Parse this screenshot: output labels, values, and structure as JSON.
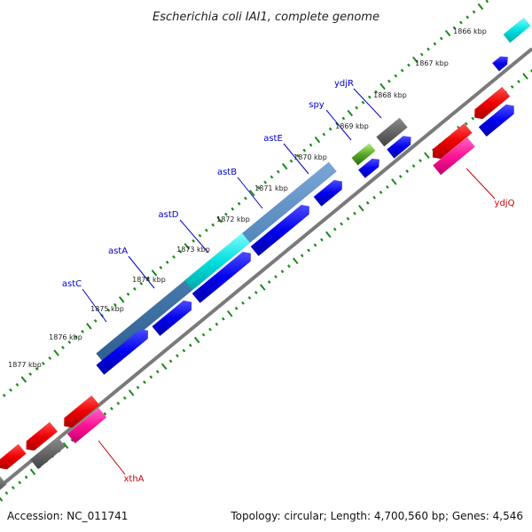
{
  "title": "Escherichia coli IAI1, complete genome",
  "footer": {
    "accession": "Accession: NC_011741",
    "summary": "Topology: circular; Length: 4,700,560 bp; Genes: 4,546"
  },
  "ticks": [
    {
      "label": "1866 kbp"
    },
    {
      "label": "1867 kbp"
    },
    {
      "label": "1868 kbp"
    },
    {
      "label": "1869 kbp"
    },
    {
      "label": "1870 kbp"
    },
    {
      "label": "1871 kbp"
    },
    {
      "label": "1872 kbp"
    },
    {
      "label": "1873 kbp"
    },
    {
      "label": "1874 kbp"
    },
    {
      "label": "1875 kbp"
    },
    {
      "label": "1876 kbp"
    },
    {
      "label": "1877 kbp"
    }
  ],
  "gene_labels": [
    {
      "text": "ydjR",
      "color": "#0000cc"
    },
    {
      "text": "spy",
      "color": "#0000cc"
    },
    {
      "text": "astE",
      "color": "#0000cc"
    },
    {
      "text": "astB",
      "color": "#0000cc"
    },
    {
      "text": "astD",
      "color": "#0000cc"
    },
    {
      "text": "astA",
      "color": "#0000cc"
    },
    {
      "text": "astC",
      "color": "#0000cc"
    },
    {
      "text": "ydjQ",
      "color": "#cc0000"
    },
    {
      "text": "xthA",
      "color": "#cc0000"
    }
  ],
  "colors": {
    "cds_forward": "#0000ee",
    "cds_reverse": "#ee0000",
    "rna": "#ff1493",
    "operon_steel": "#4a7fb5",
    "operon_cyan": "#00e0e0",
    "pseudo_gray": "#666666",
    "green_feature": "#7ac943",
    "backbone": "#7a7a7a",
    "tick_green": "#1a8a1a"
  }
}
